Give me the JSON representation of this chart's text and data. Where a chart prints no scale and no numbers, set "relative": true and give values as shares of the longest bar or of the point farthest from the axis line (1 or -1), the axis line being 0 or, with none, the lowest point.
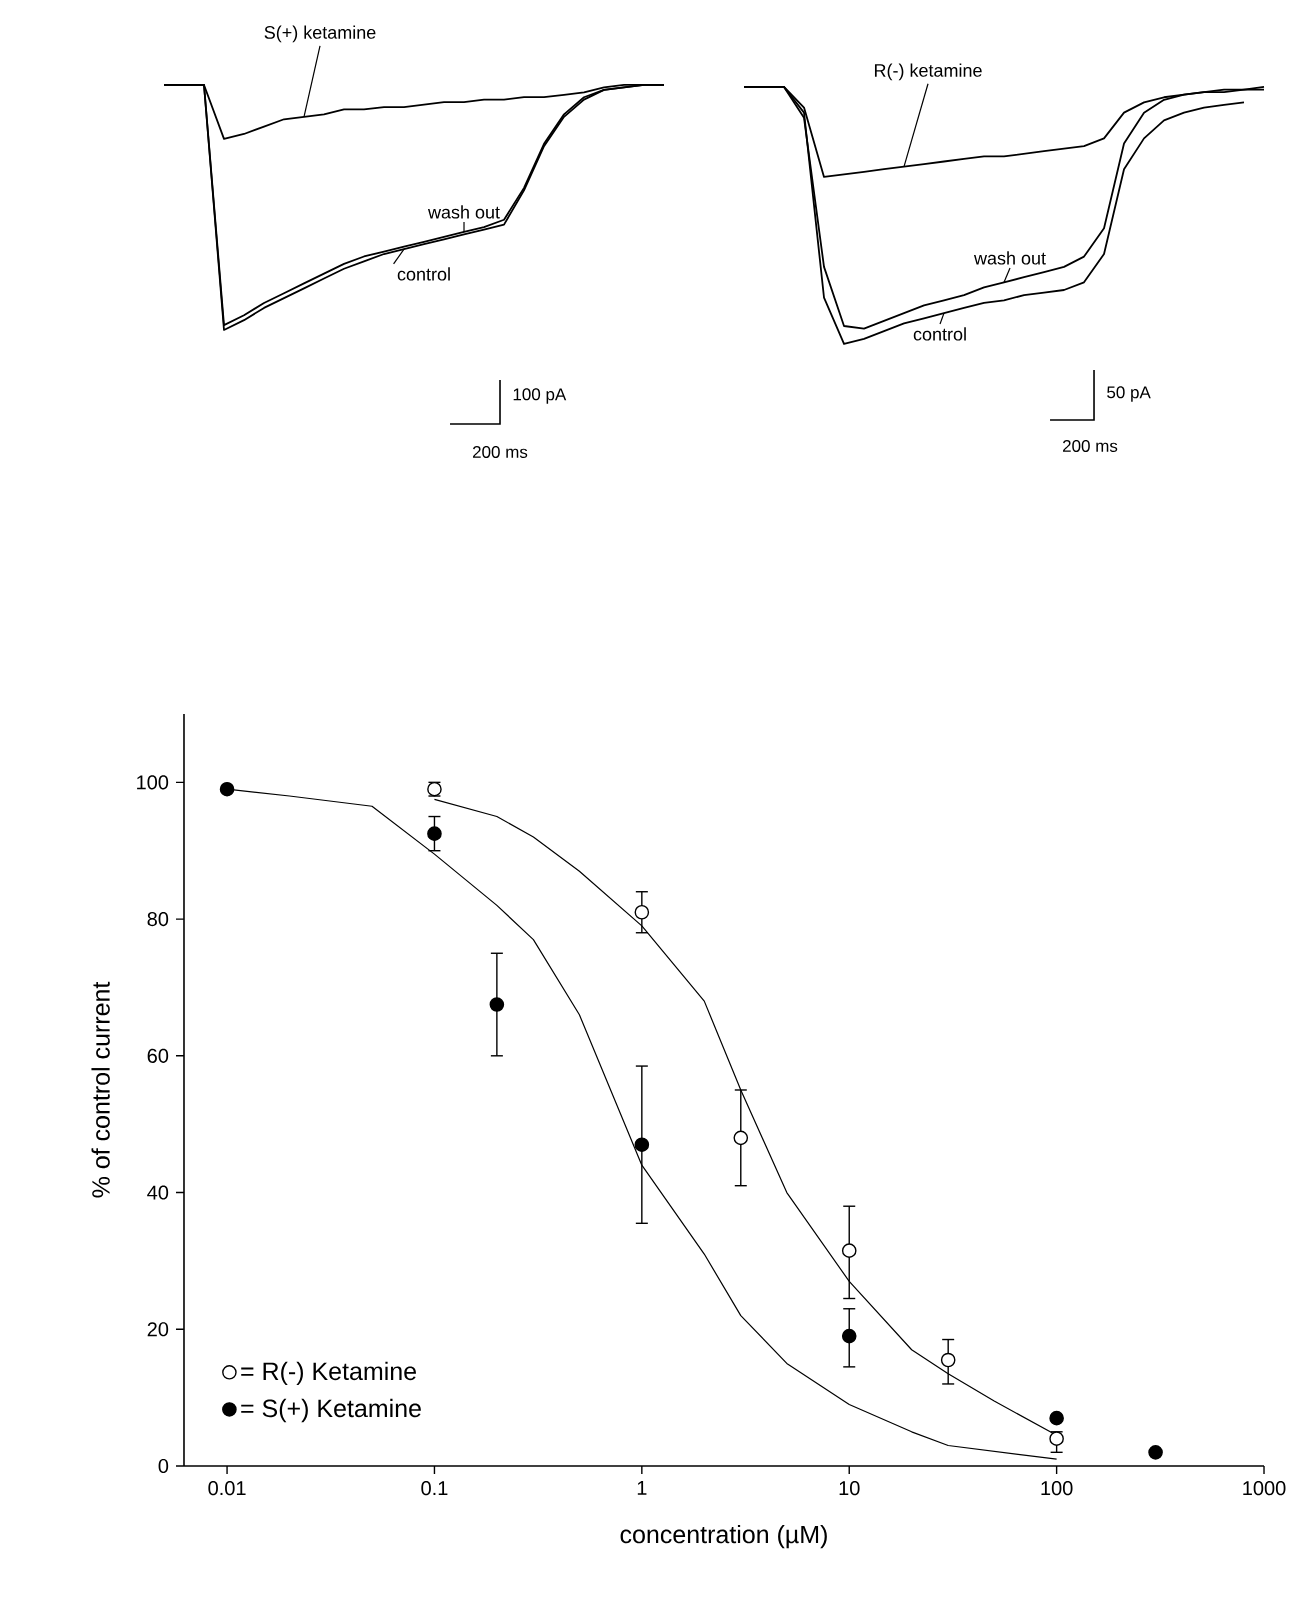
{
  "chart_data": [
    {
      "type": "line",
      "relative": true,
      "categories": [
        null,
        null,
        null,
        null,
        null,
        null,
        null,
        null,
        null,
        null,
        null,
        null,
        null,
        null,
        null,
        null,
        null,
        null,
        null,
        null,
        null,
        null,
        null,
        null,
        null,
        null
      ],
      "series": [
        {
          "name": "S(+) ketamine",
          "color": "#000000",
          "values": [
            1,
            1,
            1,
            0.78,
            0.8,
            0.83,
            0.86,
            0.87,
            0.88,
            0.9,
            0.9,
            0.91,
            0.91,
            0.92,
            0.93,
            0.93,
            0.94,
            0.94,
            0.95,
            0.95,
            0.96,
            0.97,
            0.99,
            1,
            1,
            1
          ]
        },
        {
          "name": "control",
          "color": "#000000",
          "values": [
            1,
            1,
            1,
            0,
            0.04,
            0.09,
            0.13,
            0.17,
            0.21,
            0.25,
            0.28,
            0.31,
            0.33,
            0.35,
            0.37,
            0.39,
            0.41,
            0.43,
            0.57,
            0.75,
            0.87,
            0.94,
            0.98,
            0.99,
            1,
            1
          ]
        },
        {
          "name": "wash out",
          "color": "#000000",
          "values": [
            1,
            1,
            1,
            0.02,
            0.06,
            0.11,
            0.15,
            0.19,
            0.23,
            0.27,
            0.3,
            0.32,
            0.34,
            0.36,
            0.38,
            0.4,
            0.42,
            0.45,
            0.58,
            0.76,
            0.88,
            0.95,
            0.98,
            0.99,
            1,
            1
          ]
        }
      ],
      "annotations": [
        "100 pA",
        "200 ms"
      ]
    },
    {
      "type": "line",
      "relative": true,
      "categories": [
        null,
        null,
        null,
        null,
        null,
        null,
        null,
        null,
        null,
        null,
        null,
        null,
        null,
        null,
        null,
        null,
        null,
        null,
        null,
        null,
        null,
        null,
        null,
        null,
        null,
        null,
        null
      ],
      "series": [
        {
          "name": "R(-) ketamine",
          "color": "#000000",
          "values": [
            1,
            1,
            1,
            0.92,
            0.65,
            0.66,
            0.67,
            0.68,
            0.69,
            0.7,
            0.71,
            0.72,
            0.73,
            0.73,
            0.74,
            0.75,
            0.76,
            0.77,
            0.8,
            0.9,
            0.94,
            0.96,
            0.97,
            0.98,
            0.98,
            0.99,
            0.99
          ]
        },
        {
          "name": "wash out",
          "color": "#000000",
          "values": [
            1,
            1,
            1,
            0.88,
            0.3,
            0.07,
            0.06,
            0.09,
            0.12,
            0.15,
            0.17,
            0.19,
            0.22,
            0.24,
            0.26,
            0.28,
            0.3,
            0.34,
            0.45,
            0.78,
            0.9,
            0.95,
            0.97,
            0.98,
            0.99,
            0.99,
            1
          ]
        },
        {
          "name": "control",
          "color": "#000000",
          "values": [
            1,
            1,
            1,
            0.9,
            0.18,
            0,
            0.02,
            0.05,
            0.08,
            0.1,
            0.12,
            0.14,
            0.16,
            0.17,
            0.19,
            0.2,
            0.21,
            0.24,
            0.35,
            0.68,
            0.8,
            0.87,
            0.9,
            0.92,
            0.93,
            0.94,
            null
          ]
        }
      ],
      "annotations": [
        "50 pA",
        "200 ms"
      ]
    },
    {
      "type": "scatter",
      "log": "x",
      "xlabel": "concentration (µM)",
      "ylabel": "% of control current",
      "xlim": [
        0.0062,
        1000
      ],
      "ylim": [
        0,
        110
      ],
      "xticks": [
        0.01,
        0.1,
        1,
        10,
        100,
        1000
      ],
      "yticks": [
        0,
        20,
        40,
        60,
        80,
        100
      ],
      "legend": "bottom left",
      "series": [
        {
          "name": "= R(-) Ketamine",
          "type": "scatter",
          "marker": "circle",
          "color": "#ffffff",
          "x": [
            0.1,
            1,
            3,
            10,
            30,
            100
          ],
          "values": [
            99,
            81,
            48,
            31.5,
            15.5,
            4
          ],
          "errors": [
            [
              98,
              100
            ],
            [
              78,
              84
            ],
            [
              41,
              55
            ],
            [
              24.5,
              38
            ],
            [
              12,
              18.5
            ],
            [
              2,
              5
            ]
          ]
        },
        {
          "name": "= S(+) Ketamine",
          "type": "scatter",
          "marker": "circle",
          "color": "#000000",
          "x": [
            0.01,
            0.1,
            0.2,
            1,
            10,
            100,
            300
          ],
          "values": [
            99,
            92.5,
            67.5,
            47,
            19,
            7,
            2
          ],
          "errors": [
            null,
            [
              90,
              95
            ],
            [
              60,
              75
            ],
            [
              35.5,
              58.5
            ],
            [
              14.5,
              23
            ],
            null,
            null
          ]
        },
        {
          "type": "line",
          "marker": "none",
          "color": "#000000",
          "x": [
            0.1,
            0.2,
            0.3,
            0.5,
            1,
            2,
            3,
            5,
            10,
            20,
            30,
            50,
            100
          ],
          "values": [
            97.5,
            95,
            92,
            87,
            79,
            68,
            55,
            40,
            27,
            17,
            13.5,
            9.5,
            4.5
          ]
        },
        {
          "type": "line",
          "marker": "none",
          "color": "#000000",
          "x": [
            0.01,
            0.02,
            0.05,
            0.1,
            0.2,
            0.3,
            0.5,
            1,
            2,
            3,
            5,
            10,
            20,
            30,
            100
          ],
          "values": [
            99,
            98,
            96.5,
            89.5,
            82,
            77,
            66,
            44,
            31,
            22,
            15,
            9,
            5,
            3,
            1
          ]
        }
      ]
    }
  ]
}
